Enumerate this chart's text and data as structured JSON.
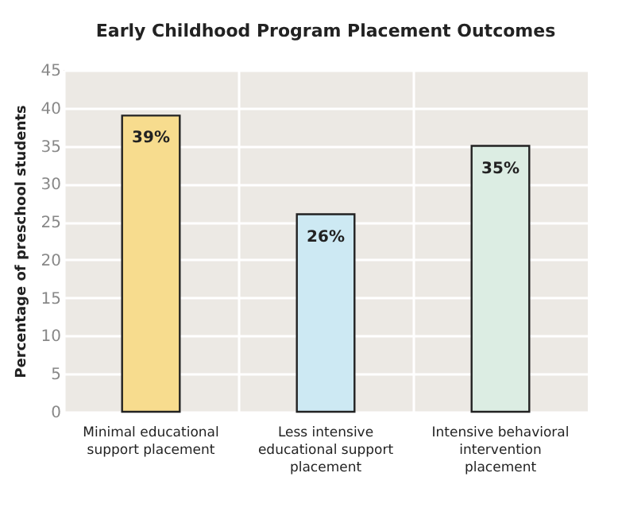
{
  "chart_data": {
    "type": "bar",
    "title": "Early Childhood Program Placement Outcomes",
    "ylabel": "Percentage of preschool students",
    "categories": [
      "Minimal educational support placement",
      "Less intensive educational support placement",
      "Intensive behavioral intervention placement"
    ],
    "values": [
      39,
      26,
      35
    ],
    "colors": [
      "#f7dc8e",
      "#cde9f3",
      "#dcede3"
    ],
    "value_labels": [
      "39%",
      "26%",
      "35%"
    ],
    "ylim": [
      0,
      45
    ],
    "yticks": [
      0,
      5,
      10,
      15,
      20,
      25,
      30,
      35,
      40,
      45
    ],
    "grid": true
  }
}
